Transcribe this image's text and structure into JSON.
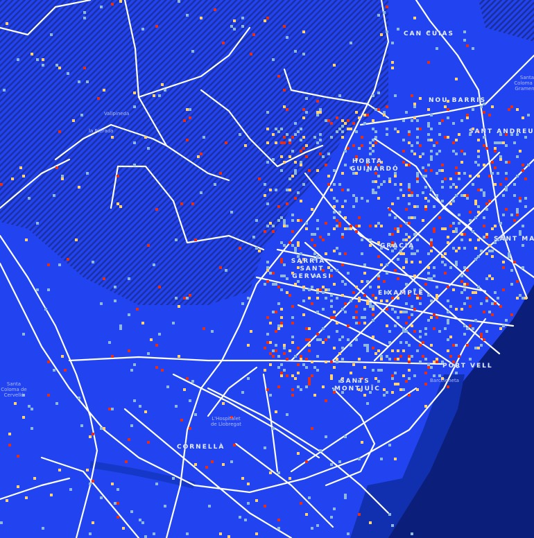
{
  "map": {
    "colors": {
      "land": "#2144f0",
      "sea": "#0b1f7a",
      "port": "#1130b0",
      "hatch": "#1a2e9c",
      "roads": "#ffffff",
      "density_low": "#8fb8e0",
      "density_mid": "#ffd27a",
      "density_high": "#e0301e"
    },
    "district_labels": [
      {
        "name": "CAN CUIAS"
      },
      {
        "name": "NOU BARRIS"
      },
      {
        "name": "SANT ANDREU"
      },
      {
        "name": "HORTA GUINARDÓ"
      },
      {
        "name": "GRÀCIA"
      },
      {
        "name": "SANT MARTÍ"
      },
      {
        "name": "SARRIÀ - SANT GERVASI"
      },
      {
        "name": "EIXAMPLE"
      },
      {
        "name": "PORT VELL"
      },
      {
        "name": "SANTS MONTJUÏC"
      },
      {
        "name": "CORNELLÀ"
      }
    ],
    "place_labels": [
      {
        "name": "Vallpineda"
      },
      {
        "name": "la Rierada"
      },
      {
        "name": "Santa Coloma de Cervelló"
      },
      {
        "name": "L'Hospitalet de Llobregat"
      },
      {
        "name": "Barceloneta"
      },
      {
        "name": "Santa Coloma de Gramenet"
      }
    ]
  }
}
